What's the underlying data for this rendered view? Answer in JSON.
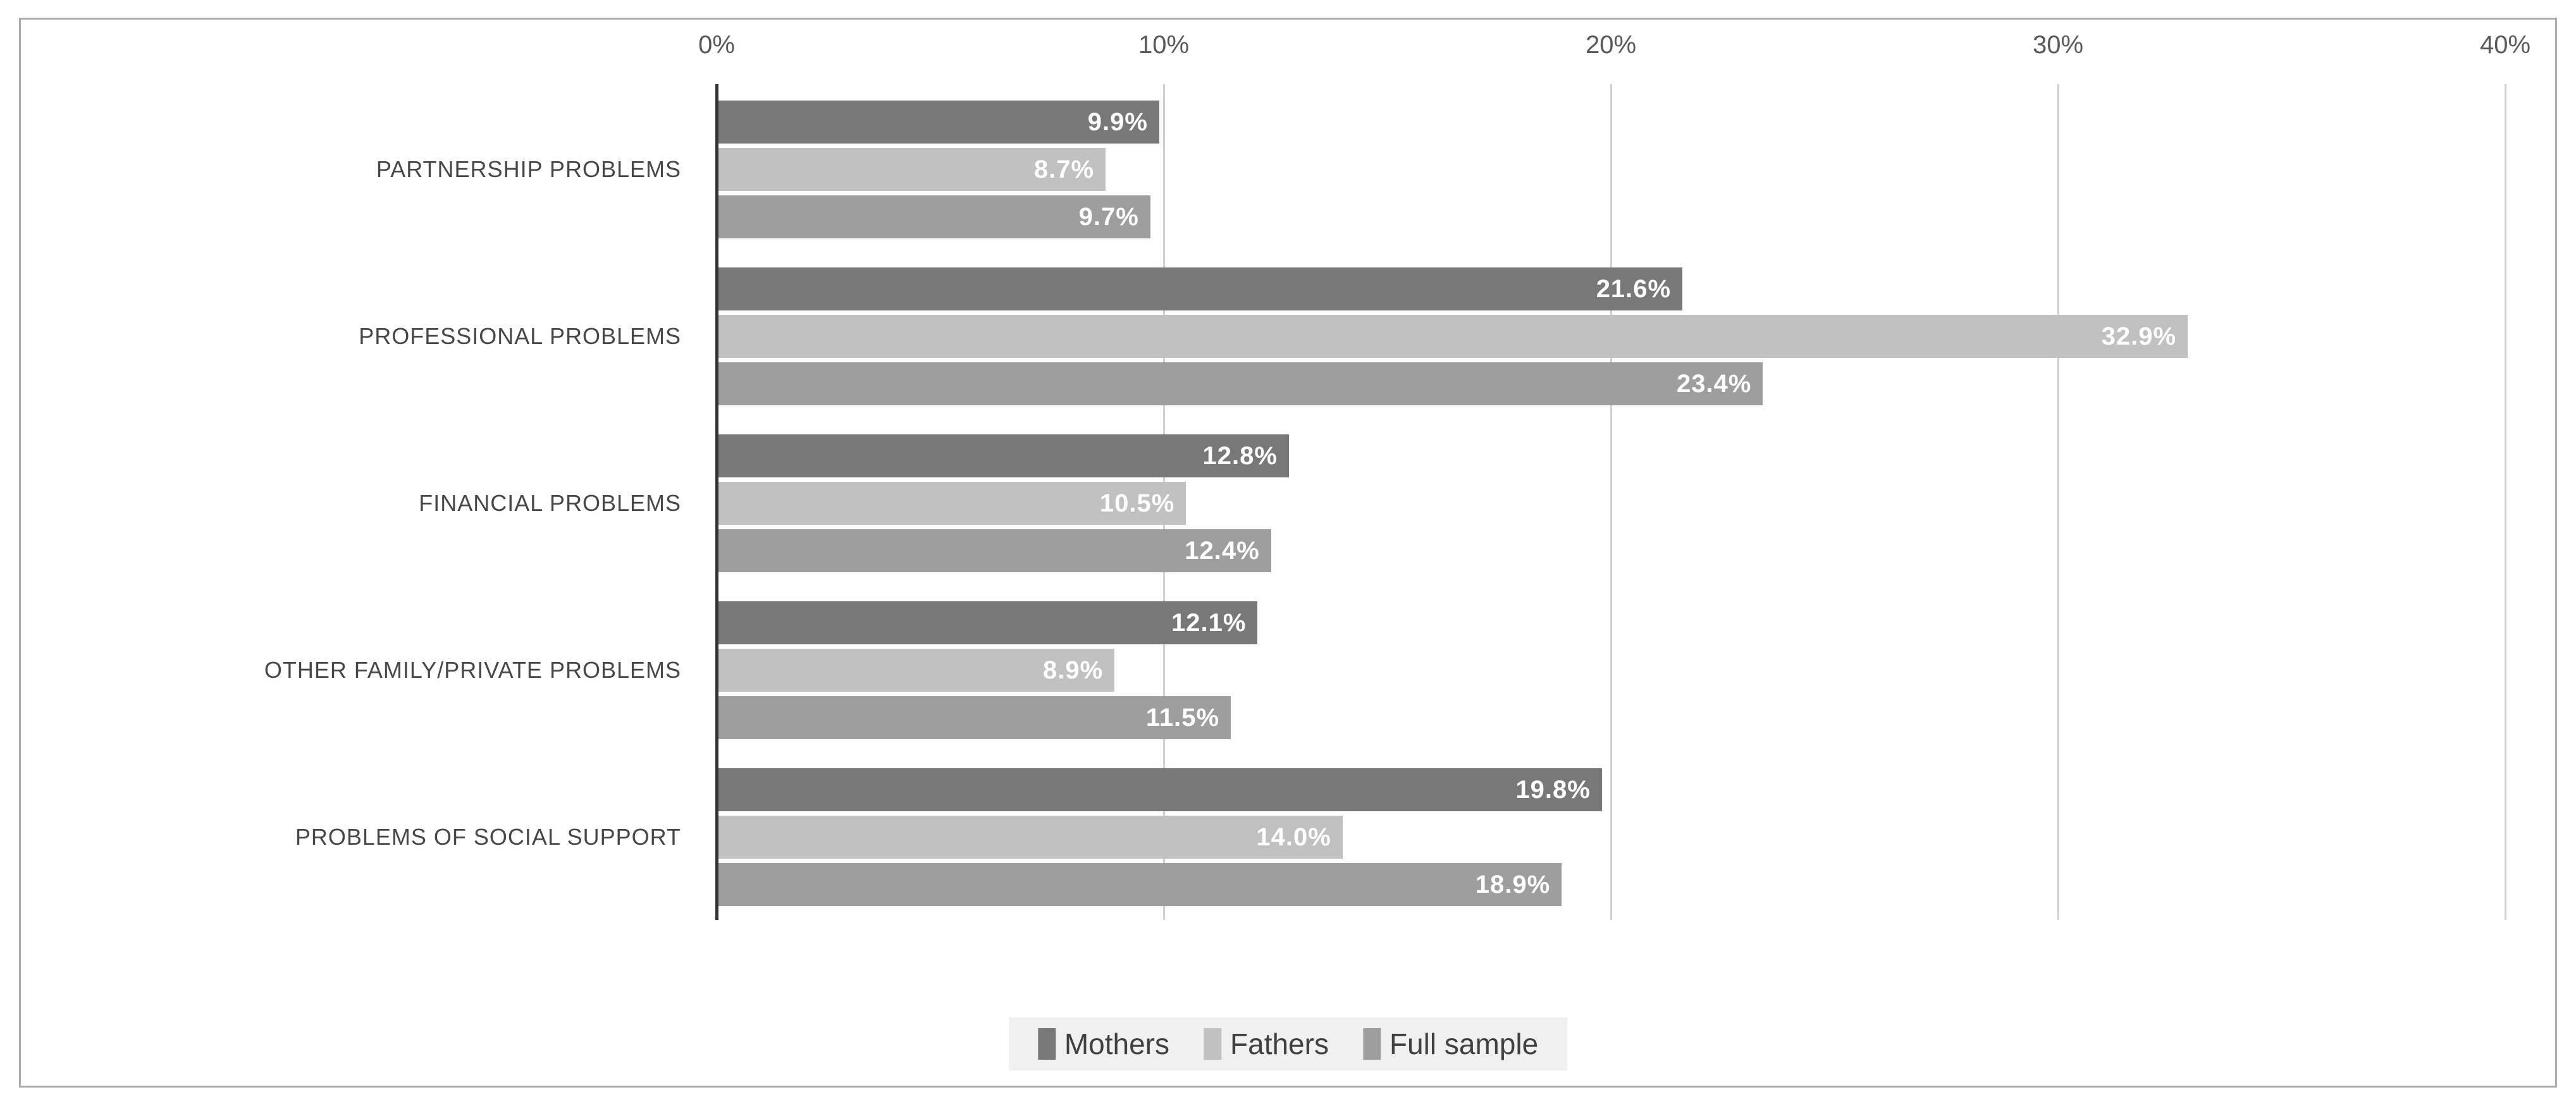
{
  "chart_data": {
    "type": "bar",
    "orientation": "horizontal",
    "title": "",
    "xlabel": "",
    "ylabel": "",
    "categories": [
      "PARTNERSHIP PROBLEMS",
      "PROFESSIONAL PROBLEMS",
      "FINANCIAL PROBLEMS",
      "OTHER FAMILY/PRIVATE PROBLEMS",
      "PROBLEMS OF SOCIAL SUPPORT"
    ],
    "series": [
      {
        "name": "Mothers",
        "color": "#787878",
        "values": [
          9.9,
          21.6,
          12.8,
          12.1,
          19.8
        ],
        "labels": [
          "9.9%",
          "21.6%",
          "12.8%",
          "12.1%",
          "19.8%"
        ]
      },
      {
        "name": "Fathers",
        "color": "#c1c1c1",
        "values": [
          8.7,
          32.9,
          10.5,
          8.9,
          14.0
        ],
        "labels": [
          "8.7%",
          "32.9%",
          "10.5%",
          "8.9%",
          "14.0%"
        ]
      },
      {
        "name": "Full sample",
        "color": "#9e9e9e",
        "values": [
          9.7,
          23.4,
          12.4,
          11.5,
          18.9
        ],
        "labels": [
          "9.7%",
          "23.4%",
          "12.4%",
          "11.5%",
          "18.9%"
        ]
      }
    ],
    "x_axis": {
      "position": "top",
      "min": 0,
      "max": 40,
      "tick_values": [
        0,
        10,
        20,
        30,
        40
      ],
      "tick_labels": [
        "0%",
        "10%",
        "20%",
        "30%",
        "40%"
      ]
    },
    "grid": true,
    "value_labels_shown": true,
    "value_label_color": "#ffffff",
    "legend": {
      "position": "bottom",
      "entries": [
        "Mothers",
        "Fathers",
        "Full sample"
      ],
      "background": "#f0f0f0"
    }
  },
  "colors": {
    "figure_border": "#ababab",
    "axis_line": "#333333",
    "gridline": "#cfcfcf",
    "tick_text": "#595959",
    "category_text": "#474747",
    "legend_text": "#404040"
  }
}
